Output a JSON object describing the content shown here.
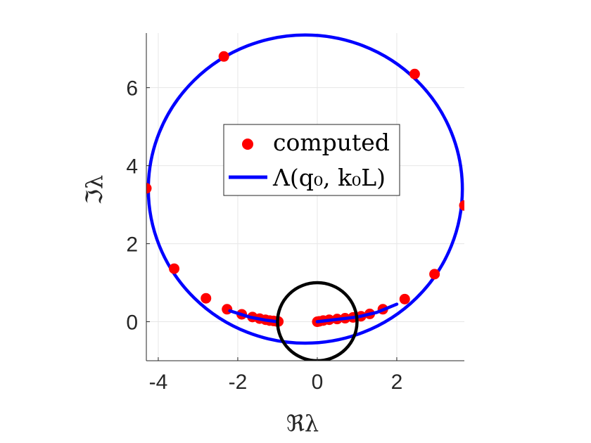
{
  "chart_data": {
    "type": "scatter",
    "xlabel": "ℜλ",
    "ylabel": "ℑλ",
    "xlim": [
      -4.3,
      3.7
    ],
    "ylim": [
      -1.0,
      7.4
    ],
    "grid": true,
    "legend_position": "center",
    "x_ticks": [
      -4,
      -2,
      0,
      2
    ],
    "x_tick_labels": [
      "-4",
      "-2",
      "0",
      "2"
    ],
    "y_ticks": [
      0,
      2,
      4,
      6
    ],
    "y_tick_labels": [
      "0",
      "2",
      "4",
      "6"
    ],
    "colors": {
      "computed": "#ff0000",
      "curve": "#0000ff",
      "unit_circle": "#000000",
      "grid": "#e6e6e6",
      "axis": "#262626"
    },
    "legend": [
      {
        "marker": "dot",
        "label": "computed"
      },
      {
        "marker": "line",
        "label": "Λ(q₀, k₀L)"
      }
    ],
    "series": [
      {
        "name": "computed",
        "style": "markers",
        "points": [
          [
            -2.35,
            6.8
          ],
          [
            -4.3,
            3.42
          ],
          [
            -3.6,
            1.36
          ],
          [
            -2.8,
            0.6
          ],
          [
            -2.27,
            0.32
          ],
          [
            -1.9,
            0.19
          ],
          [
            -1.63,
            0.12
          ],
          [
            -1.45,
            0.08
          ],
          [
            -1.3,
            0.05
          ],
          [
            -1.2,
            0.03
          ],
          [
            -1.1,
            0.02
          ],
          [
            -1.03,
            0.01
          ],
          [
            -0.98,
            0.005
          ],
          [
            2.45,
            6.35
          ],
          [
            3.7,
            2.98
          ],
          [
            2.95,
            1.22
          ],
          [
            2.2,
            0.58
          ],
          [
            1.65,
            0.32
          ],
          [
            1.32,
            0.2
          ],
          [
            1.1,
            0.14
          ],
          [
            0.9,
            0.11
          ],
          [
            0.7,
            0.09
          ],
          [
            0.5,
            0.07
          ],
          [
            0.3,
            0.05
          ],
          [
            0.15,
            0.03
          ],
          [
            0.05,
            0.01
          ],
          [
            0.0,
            0.0
          ]
        ]
      },
      {
        "name": "Λ(q₀, k₀L)",
        "style": "line",
        "circle": {
          "center": [
            -0.3,
            3.4
          ],
          "radius": 3.95
        },
        "tail_points": [
          [
            -1.0,
            0.0
          ],
          [
            -1.3,
            0.04
          ],
          [
            -1.7,
            0.12
          ],
          [
            -2.2,
            0.28
          ]
        ],
        "inner_points": [
          [
            0.0,
            0.0
          ],
          [
            0.5,
            0.06
          ],
          [
            1.0,
            0.12
          ],
          [
            1.5,
            0.24
          ],
          [
            2.0,
            0.45
          ]
        ]
      },
      {
        "name": "",
        "style": "unit-circle",
        "center": [
          0,
          0
        ],
        "radius": 1.0
      }
    ]
  }
}
